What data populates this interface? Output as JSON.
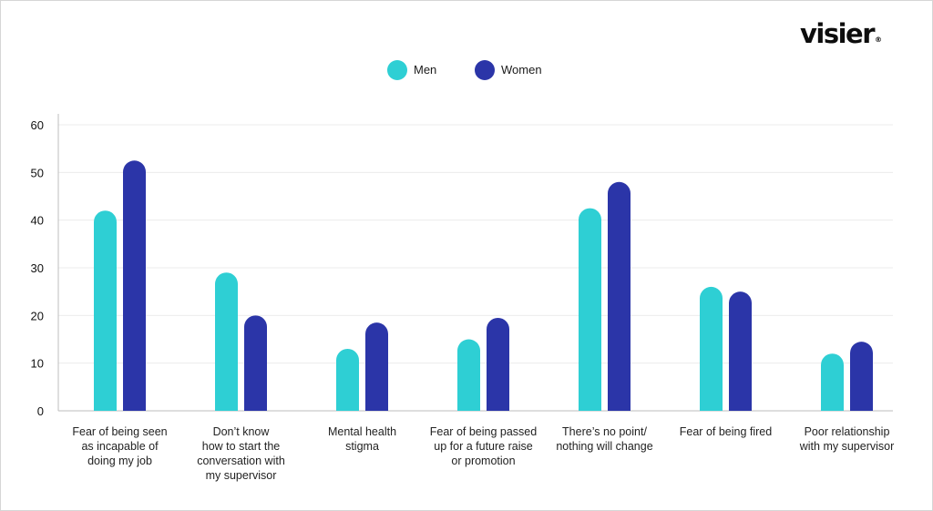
{
  "brand": {
    "logo_text": "visier",
    "logo_mark": "®"
  },
  "chart_data": {
    "type": "bar",
    "categories": [
      [
        "Fear of being seen",
        "as incapable of",
        "doing my job"
      ],
      [
        "Don’t know",
        "how to start the",
        "conversation with",
        "my supervisor"
      ],
      [
        "Mental health",
        "stigma"
      ],
      [
        "Fear of being passed",
        "up for a future raise",
        "or promotion"
      ],
      [
        "There’s no point/",
        "nothing will change"
      ],
      [
        "Fear of being fired"
      ],
      [
        "Poor relationship",
        "with my supervisor"
      ]
    ],
    "series": [
      {
        "name": "Men",
        "color": "#2ecfd4",
        "values": [
          42,
          29,
          13,
          15,
          42.5,
          26,
          12
        ]
      },
      {
        "name": "Women",
        "color": "#2b35a8",
        "values": [
          52.5,
          20,
          18.5,
          19.5,
          48,
          25,
          14.5
        ]
      }
    ],
    "yticks": [
      0,
      10,
      20,
      30,
      40,
      50,
      60
    ],
    "ylim": [
      0,
      60
    ],
    "grid": true,
    "legend_position": "top-center",
    "title": "",
    "xlabel": "",
    "ylabel": ""
  }
}
